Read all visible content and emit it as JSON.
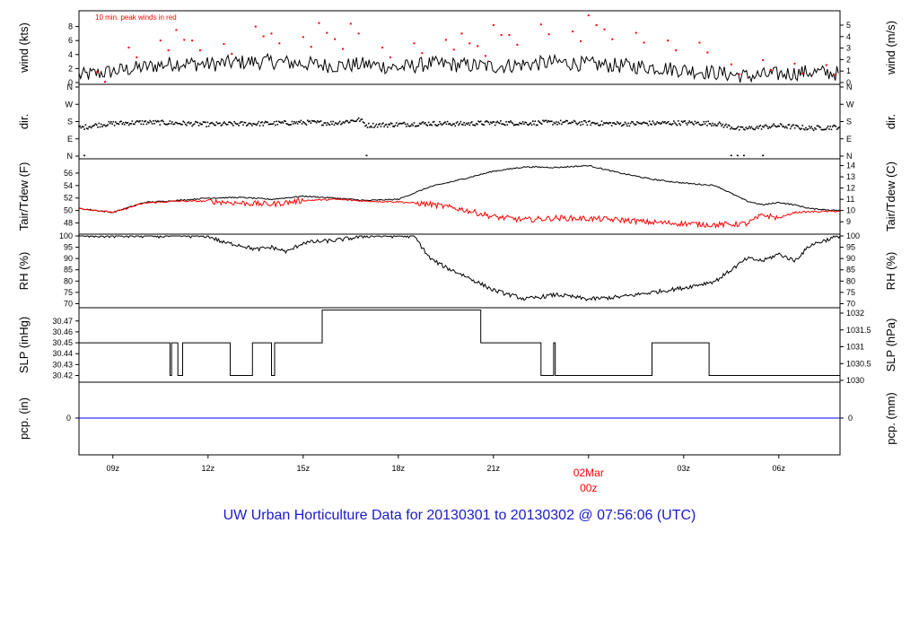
{
  "title": "UW Urban Horticulture Data for 20130301  to  20130302 @ 07:56:06  (UTC)",
  "colors": {
    "line": "#000000",
    "dew": "#ff0000",
    "peak": "#ff0000",
    "precip": "#0000ff",
    "title": "#1a1acc",
    "date_label": "#ff0000"
  },
  "x_axis": {
    "ticks": [
      {
        "hour": 9,
        "label": "09z"
      },
      {
        "hour": 12,
        "label": "12z"
      },
      {
        "hour": 15,
        "label": "15z"
      },
      {
        "hour": 18,
        "label": "18z"
      },
      {
        "hour": 21,
        "label": "21z"
      },
      {
        "hour": 27,
        "label": "03z"
      },
      {
        "hour": 30,
        "label": "06z"
      }
    ],
    "range_hours": [
      7.93,
      31.93
    ],
    "date_mark": {
      "hour": 24,
      "line1": "02Mar",
      "line2": "00z"
    }
  },
  "chart_data": [
    {
      "type": "line",
      "panel": "wind",
      "left_label": "wind (kts)",
      "right_label": "wind (m/s)",
      "annotation": "10 min. peak winds in red",
      "ylim": [
        0,
        10
      ],
      "left_ticks": [
        "0",
        "2",
        "4",
        "6",
        "8"
      ],
      "right_ticks": [
        "0",
        "1",
        "2",
        "3",
        "4",
        "5"
      ],
      "series": [
        {
          "role": "sustained",
          "x": [
            8,
            9,
            10,
            11,
            12,
            13,
            14,
            15,
            16,
            17,
            18,
            19,
            20,
            21,
            22,
            23,
            24,
            25,
            26,
            27,
            28,
            29,
            30,
            31,
            31.9
          ],
          "values": [
            1.0,
            1.6,
            2.2,
            2.8,
            2.6,
            2.9,
            3.0,
            2.7,
            2.4,
            2.6,
            2.1,
            2.7,
            2.5,
            2.3,
            2.6,
            2.9,
            2.6,
            2.4,
            2.2,
            1.8,
            1.4,
            0.9,
            1.2,
            1.5,
            1.3
          ]
        },
        {
          "role": "peak",
          "x": [
            8.5,
            9.5,
            10.5,
            11,
            11.5,
            12.5,
            13.5,
            14,
            15,
            15.5,
            16,
            16.5,
            17.5,
            18.5,
            19.5,
            20,
            20.5,
            21,
            21.5,
            22.5,
            23.5,
            24,
            24.5,
            25.5,
            26.5,
            27.5,
            28.5,
            29.5,
            30.5,
            31.5
          ],
          "values": [
            1.5,
            5.0,
            6.0,
            7.5,
            6.0,
            5.5,
            8.0,
            7.0,
            6.5,
            8.5,
            6.2,
            8.4,
            5.0,
            5.6,
            6.1,
            7.0,
            5.2,
            8.2,
            6.8,
            8.3,
            7.3,
            9.6,
            7.6,
            7.1,
            6.0,
            5.7,
            2.6,
            3.2,
            2.7,
            2.5
          ]
        }
      ]
    },
    {
      "type": "scatter",
      "panel": "direction",
      "left_label": "dir.",
      "right_label": "dir.",
      "ylim": [
        0,
        360
      ],
      "tick_labels": [
        "N",
        "W",
        "S",
        "E",
        "N"
      ],
      "series": [
        {
          "name": "",
          "x": [
            8,
            8.5,
            9,
            10,
            11,
            12,
            13,
            14,
            15,
            16,
            16.8,
            17,
            18,
            19,
            20,
            21,
            22,
            23,
            24,
            25,
            26,
            27,
            28,
            28.8,
            29.5,
            30,
            31,
            31.9
          ],
          "values": [
            148,
            162,
            170,
            176,
            172,
            165,
            168,
            170,
            175,
            172,
            190,
            160,
            165,
            170,
            168,
            173,
            172,
            175,
            172,
            168,
            171,
            173,
            170,
            140,
            152,
            158,
            145,
            152
          ]
        }
      ]
    },
    {
      "type": "line",
      "panel": "temperature",
      "left_label": "Tair/Tdew (F)",
      "right_label": "Tair/Tdew (C)",
      "ylim": [
        46.5,
        58
      ],
      "left_ticks": [
        "48",
        "50",
        "52",
        "54",
        "56"
      ],
      "right_ticks": [
        "9",
        "10",
        "11",
        "12",
        "13",
        "14"
      ],
      "series": [
        {
          "name": "Tair",
          "x": [
            8,
            9,
            10,
            11,
            12,
            13,
            14,
            15,
            16,
            17,
            18,
            19,
            20,
            21,
            22,
            23,
            24,
            25,
            26,
            27,
            28,
            29,
            29.5,
            30,
            30.5,
            31,
            31.9
          ],
          "values": [
            50.3,
            49.7,
            51.3,
            51.6,
            52.0,
            52.1,
            51.8,
            52.3,
            52.0,
            51.6,
            51.8,
            53.8,
            55.0,
            56.3,
            57.0,
            56.9,
            57.2,
            56.0,
            55.0,
            54.4,
            54.0,
            51.5,
            50.9,
            51.3,
            50.9,
            50.3,
            50.0
          ]
        },
        {
          "name": "Tdew",
          "x": [
            8,
            9,
            10,
            11,
            12,
            13,
            14,
            15,
            16,
            17,
            18,
            19,
            20,
            21,
            22,
            23,
            24,
            25,
            26,
            27,
            28,
            29,
            29.5,
            30,
            30.5,
            31,
            31.9
          ],
          "values": [
            50.3,
            49.7,
            51.2,
            51.5,
            51.5,
            51.2,
            51.0,
            51.6,
            51.8,
            51.5,
            51.4,
            51.0,
            50.2,
            49.0,
            48.5,
            48.8,
            48.7,
            48.5,
            48.1,
            47.9,
            47.7,
            47.9,
            49.3,
            48.8,
            49.7,
            49.8,
            49.9
          ]
        }
      ]
    },
    {
      "type": "line",
      "panel": "humidity",
      "left_label": "RH (%)",
      "right_label": "RH (%)",
      "ylim": [
        69,
        100
      ],
      "ticks": [
        "70",
        "75",
        "80",
        "85",
        "90",
        "95",
        "100"
      ],
      "series": [
        {
          "name": "",
          "x": [
            8,
            12,
            12.5,
            13,
            13.5,
            14,
            14.5,
            15,
            16,
            17,
            18,
            18.5,
            19,
            19.5,
            20,
            21,
            22,
            23,
            24,
            25,
            26,
            27,
            28,
            29,
            29.5,
            30,
            30.5,
            31,
            31.9
          ],
          "values": [
            100,
            100,
            97,
            96,
            94,
            95,
            93,
            97,
            98,
            100,
            100,
            100,
            90,
            86,
            83,
            76,
            72,
            74,
            72,
            73,
            75,
            77,
            80,
            90,
            89,
            92,
            89,
            96,
            100
          ]
        }
      ]
    },
    {
      "type": "line",
      "panel": "pressure",
      "left_label": "SLP (inHg)",
      "right_label": "SLP (hPa)",
      "ylim": [
        30.4155,
        30.4805
      ],
      "left_ticks": [
        "30.42",
        "30.43",
        "30.44",
        "30.45",
        "30.46",
        "30.47"
      ],
      "right_ticks": [
        "1030",
        "1030.5",
        "1031",
        "1031.5",
        "1032"
      ],
      "series": [
        {
          "name": "",
          "step": true,
          "x": [
            7.93,
            10.8,
            10.85,
            11.05,
            11.2,
            12.7,
            13.4,
            14.0,
            14.1,
            14.3,
            15.6,
            20.6,
            22.5,
            22.9,
            22.95,
            26.0,
            27.8,
            31.93
          ],
          "values": [
            30.45,
            30.42,
            30.45,
            30.42,
            30.45,
            30.42,
            30.45,
            30.42,
            30.45,
            30.45,
            30.48,
            30.45,
            30.42,
            30.45,
            30.42,
            30.45,
            30.42,
            30.42
          ]
        }
      ]
    },
    {
      "type": "line",
      "panel": "precipitation",
      "left_label": "pcp. (in)",
      "right_label": "pcp. (mm)",
      "ylim": [
        -1,
        1
      ],
      "left_ticks": [
        "0"
      ],
      "right_ticks": [
        "0"
      ],
      "series": [
        {
          "name": "",
          "x": [
            7.93,
            31.93
          ],
          "values": [
            0,
            0
          ]
        }
      ]
    }
  ]
}
